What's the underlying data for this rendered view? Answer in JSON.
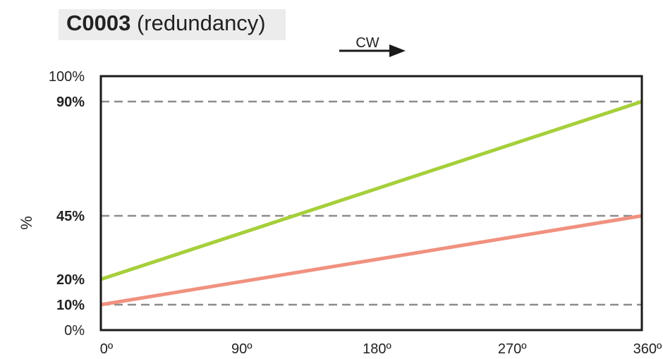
{
  "title_code": "C0003",
  "title_rest": " (redundancy)",
  "direction_label": "CW",
  "chart_data": {
    "type": "line",
    "x": [
      0,
      360
    ],
    "xlim": [
      0,
      360
    ],
    "ylim": [
      0,
      100
    ],
    "xticks": [
      {
        "value": 0,
        "label": "0º"
      },
      {
        "value": 90,
        "label": "90º"
      },
      {
        "value": 180,
        "label": "180º"
      },
      {
        "value": 270,
        "label": "270º"
      },
      {
        "value": 360,
        "label": "360º"
      }
    ],
    "yticks": [
      {
        "value": 0,
        "label": "0%",
        "bold": false
      },
      {
        "value": 10,
        "label": "10%",
        "bold": true
      },
      {
        "value": 20,
        "label": "20%",
        "bold": true
      },
      {
        "value": 45,
        "label": "45%",
        "bold": true
      },
      {
        "value": 90,
        "label": "90%",
        "bold": true
      },
      {
        "value": 100,
        "label": "100%",
        "bold": false
      }
    ],
    "ylabel": "%",
    "xlabel": "",
    "reference_lines": [
      10,
      45,
      90
    ],
    "series": [
      {
        "values": [
          20,
          90
        ],
        "color": "#a6cf3b"
      },
      {
        "values": [
          10,
          45
        ],
        "color": "#f0917f"
      }
    ],
    "grid": false
  }
}
